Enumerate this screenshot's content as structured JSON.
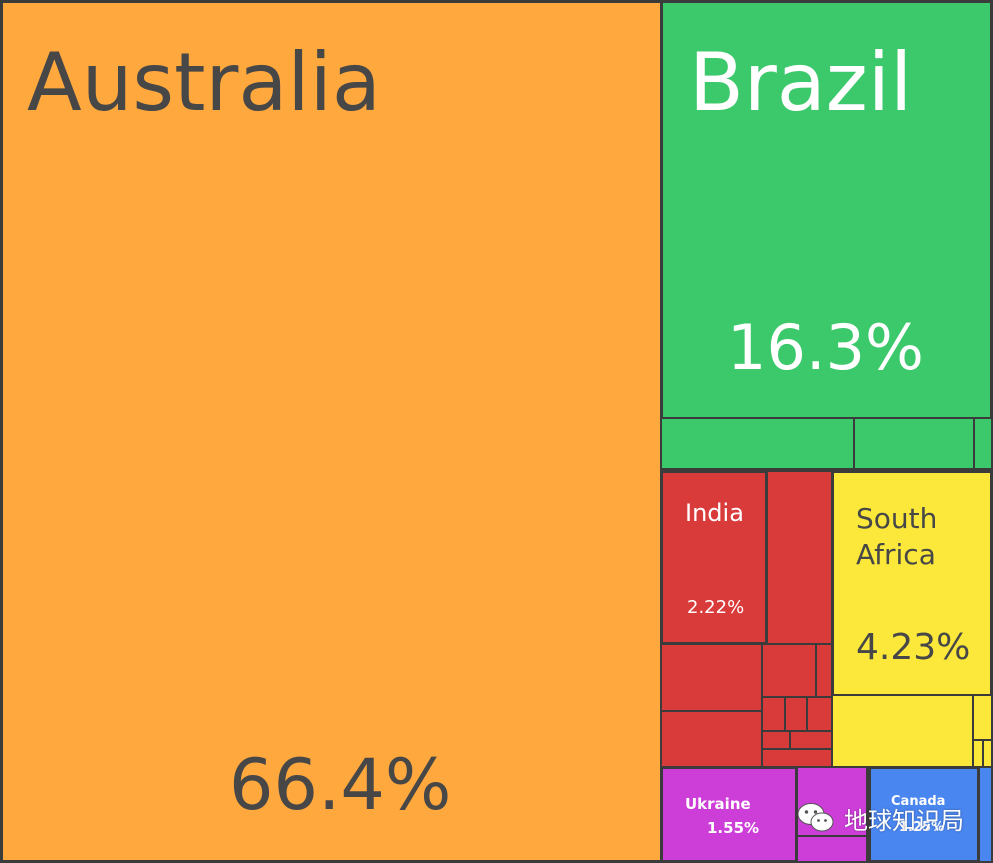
{
  "chart_data": {
    "type": "treemap",
    "tiles": [
      {
        "name": "Australia",
        "value_label": "66.4%",
        "value": 66.4,
        "color": "#ffa83d"
      },
      {
        "name": "Brazil",
        "value_label": "16.3%",
        "value": 16.3,
        "color": "#3cc96b"
      },
      {
        "name": "South Africa",
        "value_label": "4.23%",
        "value": 4.23,
        "color": "#fbe83a"
      },
      {
        "name": "India",
        "value_label": "2.22%",
        "value": 2.22,
        "color": "#d93a3a"
      },
      {
        "name": "Ukraine",
        "value_label": "1.55%",
        "value": 1.55,
        "color": "#cd3ed9"
      },
      {
        "name": "Canada",
        "value_label": "1.25%",
        "value": 1.25,
        "color": "#4a86f0"
      }
    ]
  },
  "colors": {
    "border": "#3b3b3b",
    "label_dark": "#474747",
    "label_light": "#ffffff",
    "brazil_minor": "#3cc96b",
    "india_minor": "#d93a3a",
    "southafrica_minor": "#fbe83a",
    "ukraine_minor": "#cd3ed9",
    "canada_minor": "#4a86f0"
  },
  "watermark": {
    "text": "地球知识局",
    "icon": "wechat-icon"
  }
}
